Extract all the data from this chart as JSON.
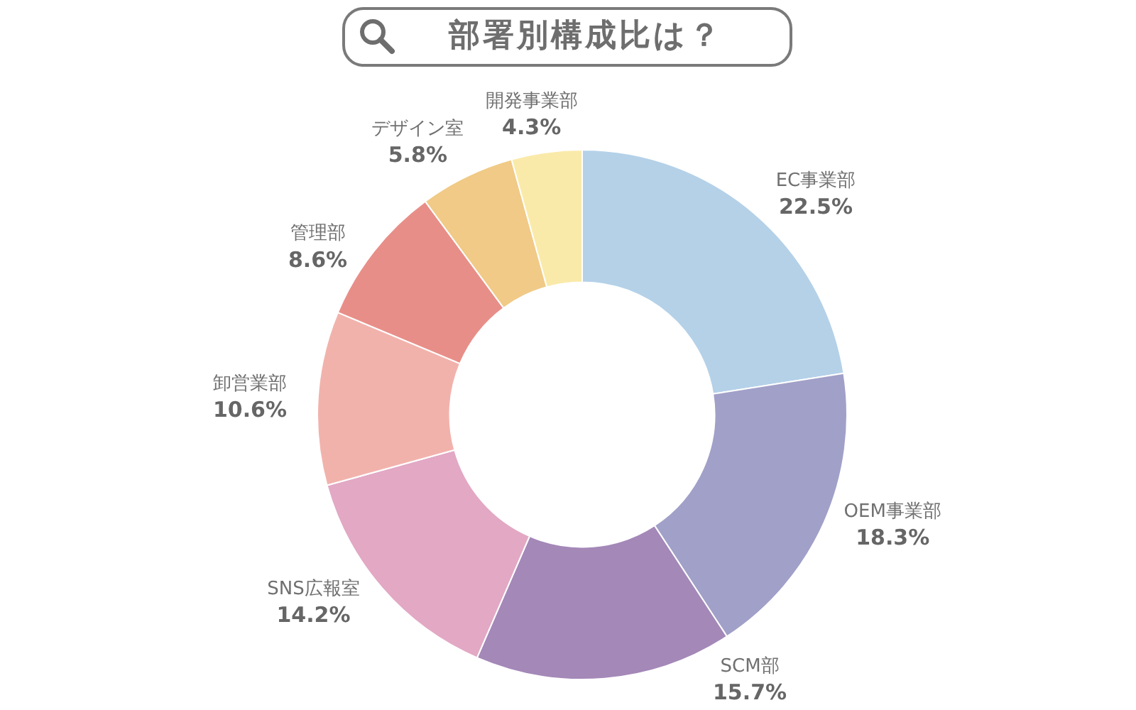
{
  "chart_data": {
    "type": "donut",
    "title": "部署別構成比は？",
    "categories": [
      "EC事業部",
      "OEM事業部",
      "SCM部",
      "SNS広報室",
      "卸営業部",
      "管理部",
      "デザイン室",
      "開発事業部"
    ],
    "values": [
      22.5,
      18.3,
      15.7,
      14.2,
      10.6,
      8.6,
      5.8,
      4.3
    ],
    "colors": [
      "#b4d1e8",
      "#a0a0c8",
      "#a488b8",
      "#e2a8c4",
      "#f2b2ac",
      "#e88e88",
      "#f0ca86",
      "#faeaaa"
    ],
    "value_labels": [
      "22.5%",
      "18.3%",
      "15.7%",
      "14.2%",
      "10.6%",
      "8.6%",
      "5.8%",
      "4.3%"
    ]
  }
}
